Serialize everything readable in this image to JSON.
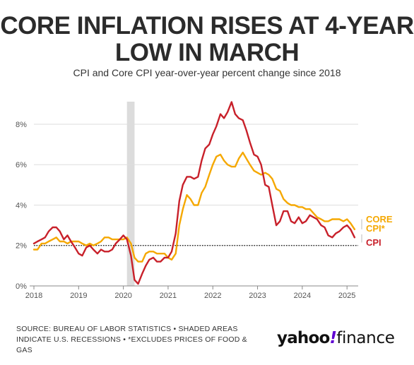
{
  "header": {
    "title": "CORE INFLATION RISES AT 4-YEAR LOW IN MARCH",
    "subtitle": "CPI and Core CPI year-over-year percent change since 2018"
  },
  "footer": {
    "source": "SOURCE: BUREAU OF LABOR STATISTICS • SHADED AREAS INDICATE U.S. RECESSIONS • *EXCLUDES PRICES OF FOOD & GAS",
    "logo_yahoo": "yahoo",
    "logo_bang": "!",
    "logo_finance": "finance"
  },
  "colors": {
    "cpi": "#c8202a",
    "core": "#f5a800",
    "recession": "#dcdcdc",
    "grid": "#dddddd",
    "reference": "#222222"
  },
  "chart_data": {
    "type": "line",
    "title": "CORE INFLATION RISES AT 4-YEAR LOW IN MARCH",
    "subtitle": "CPI and Core CPI year-over-year percent change since 2018",
    "xlabel": "",
    "ylabel": "",
    "x_ticks": [
      "2018",
      "2019",
      "2020",
      "2021",
      "2022",
      "2023",
      "2024",
      "2025"
    ],
    "y_ticks": [
      "0%",
      "2%",
      "4%",
      "6%",
      "8%"
    ],
    "xlim": [
      2018.0,
      2025.25
    ],
    "ylim": [
      0,
      9.5
    ],
    "grid": true,
    "reference_line": 2,
    "recession_band": [
      2020.08,
      2020.25
    ],
    "series": [
      {
        "name": "CPI",
        "label": "CPI",
        "color": "#c8202a",
        "points": [
          [
            2018.0,
            2.1
          ],
          [
            2018.08,
            2.2
          ],
          [
            2018.17,
            2.3
          ],
          [
            2018.25,
            2.4
          ],
          [
            2018.33,
            2.7
          ],
          [
            2018.42,
            2.9
          ],
          [
            2018.5,
            2.9
          ],
          [
            2018.58,
            2.7
          ],
          [
            2018.67,
            2.3
          ],
          [
            2018.75,
            2.5
          ],
          [
            2018.83,
            2.2
          ],
          [
            2018.92,
            1.9
          ],
          [
            2019.0,
            1.6
          ],
          [
            2019.08,
            1.5
          ],
          [
            2019.17,
            1.9
          ],
          [
            2019.25,
            2.0
          ],
          [
            2019.33,
            1.8
          ],
          [
            2019.42,
            1.6
          ],
          [
            2019.5,
            1.8
          ],
          [
            2019.58,
            1.7
          ],
          [
            2019.67,
            1.7
          ],
          [
            2019.75,
            1.8
          ],
          [
            2019.83,
            2.1
          ],
          [
            2019.92,
            2.3
          ],
          [
            2020.0,
            2.5
          ],
          [
            2020.08,
            2.3
          ],
          [
            2020.17,
            1.5
          ],
          [
            2020.25,
            0.3
          ],
          [
            2020.33,
            0.1
          ],
          [
            2020.42,
            0.6
          ],
          [
            2020.5,
            1.0
          ],
          [
            2020.58,
            1.3
          ],
          [
            2020.67,
            1.4
          ],
          [
            2020.75,
            1.2
          ],
          [
            2020.83,
            1.2
          ],
          [
            2020.92,
            1.4
          ],
          [
            2021.0,
            1.4
          ],
          [
            2021.08,
            1.7
          ],
          [
            2021.17,
            2.6
          ],
          [
            2021.25,
            4.2
          ],
          [
            2021.33,
            5.0
          ],
          [
            2021.42,
            5.4
          ],
          [
            2021.5,
            5.4
          ],
          [
            2021.58,
            5.3
          ],
          [
            2021.67,
            5.4
          ],
          [
            2021.75,
            6.2
          ],
          [
            2021.83,
            6.8
          ],
          [
            2021.92,
            7.0
          ],
          [
            2022.0,
            7.5
          ],
          [
            2022.08,
            7.9
          ],
          [
            2022.17,
            8.5
          ],
          [
            2022.25,
            8.3
          ],
          [
            2022.33,
            8.6
          ],
          [
            2022.42,
            9.1
          ],
          [
            2022.5,
            8.5
          ],
          [
            2022.58,
            8.3
          ],
          [
            2022.67,
            8.2
          ],
          [
            2022.75,
            7.7
          ],
          [
            2022.83,
            7.1
          ],
          [
            2022.92,
            6.5
          ],
          [
            2023.0,
            6.4
          ],
          [
            2023.08,
            6.0
          ],
          [
            2023.17,
            5.0
          ],
          [
            2023.25,
            4.9
          ],
          [
            2023.33,
            4.0
          ],
          [
            2023.42,
            3.0
          ],
          [
            2023.5,
            3.2
          ],
          [
            2023.58,
            3.7
          ],
          [
            2023.67,
            3.7
          ],
          [
            2023.75,
            3.2
          ],
          [
            2023.83,
            3.1
          ],
          [
            2023.92,
            3.4
          ],
          [
            2024.0,
            3.1
          ],
          [
            2024.08,
            3.2
          ],
          [
            2024.17,
            3.5
          ],
          [
            2024.25,
            3.4
          ],
          [
            2024.33,
            3.3
          ],
          [
            2024.42,
            3.0
          ],
          [
            2024.5,
            2.9
          ],
          [
            2024.58,
            2.5
          ],
          [
            2024.67,
            2.4
          ],
          [
            2024.75,
            2.6
          ],
          [
            2024.83,
            2.7
          ],
          [
            2024.92,
            2.9
          ],
          [
            2025.0,
            3.0
          ],
          [
            2025.08,
            2.8
          ],
          [
            2025.17,
            2.4
          ]
        ]
      },
      {
        "name": "Core CPI*",
        "label": "CORE CPI*",
        "color": "#f5a800",
        "points": [
          [
            2018.0,
            1.8
          ],
          [
            2018.08,
            1.8
          ],
          [
            2018.17,
            2.1
          ],
          [
            2018.25,
            2.1
          ],
          [
            2018.33,
            2.2
          ],
          [
            2018.42,
            2.3
          ],
          [
            2018.5,
            2.4
          ],
          [
            2018.58,
            2.2
          ],
          [
            2018.67,
            2.2
          ],
          [
            2018.75,
            2.1
          ],
          [
            2018.83,
            2.2
          ],
          [
            2018.92,
            2.2
          ],
          [
            2019.0,
            2.2
          ],
          [
            2019.08,
            2.1
          ],
          [
            2019.17,
            2.0
          ],
          [
            2019.25,
            2.1
          ],
          [
            2019.33,
            2.0
          ],
          [
            2019.42,
            2.1
          ],
          [
            2019.5,
            2.2
          ],
          [
            2019.58,
            2.4
          ],
          [
            2019.67,
            2.4
          ],
          [
            2019.75,
            2.3
          ],
          [
            2019.83,
            2.3
          ],
          [
            2019.92,
            2.3
          ],
          [
            2020.0,
            2.3
          ],
          [
            2020.08,
            2.4
          ],
          [
            2020.17,
            2.1
          ],
          [
            2020.25,
            1.4
          ],
          [
            2020.33,
            1.2
          ],
          [
            2020.42,
            1.2
          ],
          [
            2020.5,
            1.6
          ],
          [
            2020.58,
            1.7
          ],
          [
            2020.67,
            1.7
          ],
          [
            2020.75,
            1.6
          ],
          [
            2020.83,
            1.6
          ],
          [
            2020.92,
            1.6
          ],
          [
            2021.0,
            1.4
          ],
          [
            2021.08,
            1.3
          ],
          [
            2021.17,
            1.6
          ],
          [
            2021.25,
            3.0
          ],
          [
            2021.33,
            3.8
          ],
          [
            2021.42,
            4.5
          ],
          [
            2021.5,
            4.3
          ],
          [
            2021.58,
            4.0
          ],
          [
            2021.67,
            4.0
          ],
          [
            2021.75,
            4.6
          ],
          [
            2021.83,
            4.9
          ],
          [
            2021.92,
            5.5
          ],
          [
            2022.0,
            6.0
          ],
          [
            2022.08,
            6.4
          ],
          [
            2022.17,
            6.5
          ],
          [
            2022.25,
            6.2
          ],
          [
            2022.33,
            6.0
          ],
          [
            2022.42,
            5.9
          ],
          [
            2022.5,
            5.9
          ],
          [
            2022.58,
            6.3
          ],
          [
            2022.67,
            6.6
          ],
          [
            2022.75,
            6.3
          ],
          [
            2022.83,
            6.0
          ],
          [
            2022.92,
            5.7
          ],
          [
            2023.0,
            5.6
          ],
          [
            2023.08,
            5.5
          ],
          [
            2023.17,
            5.6
          ],
          [
            2023.25,
            5.5
          ],
          [
            2023.33,
            5.3
          ],
          [
            2023.42,
            4.8
          ],
          [
            2023.5,
            4.7
          ],
          [
            2023.58,
            4.3
          ],
          [
            2023.67,
            4.1
          ],
          [
            2023.75,
            4.0
          ],
          [
            2023.83,
            4.0
          ],
          [
            2023.92,
            3.9
          ],
          [
            2024.0,
            3.9
          ],
          [
            2024.08,
            3.8
          ],
          [
            2024.17,
            3.8
          ],
          [
            2024.25,
            3.6
          ],
          [
            2024.33,
            3.4
          ],
          [
            2024.42,
            3.3
          ],
          [
            2024.5,
            3.2
          ],
          [
            2024.58,
            3.2
          ],
          [
            2024.67,
            3.3
          ],
          [
            2024.75,
            3.3
          ],
          [
            2024.83,
            3.3
          ],
          [
            2024.92,
            3.2
          ],
          [
            2025.0,
            3.3
          ],
          [
            2025.08,
            3.1
          ],
          [
            2025.17,
            2.8
          ]
        ]
      }
    ]
  }
}
